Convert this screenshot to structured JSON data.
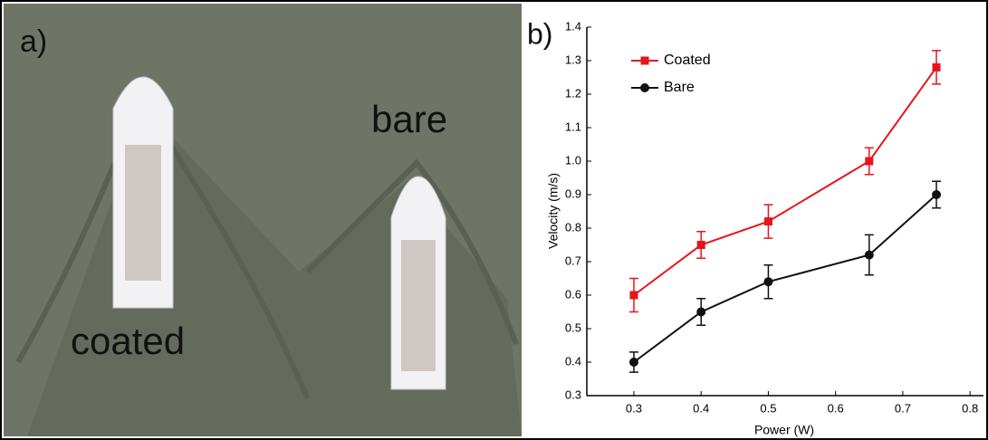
{
  "panel_a": {
    "label": "a)",
    "annotations": [
      "coated",
      "bare"
    ]
  },
  "chart_data": {
    "type": "line",
    "panel_label": "b)",
    "x_label": "Power (W)",
    "y_label": "Velocity (m/s)",
    "x": [
      0.3,
      0.4,
      0.5,
      0.65,
      0.75
    ],
    "series": [
      {
        "name": "Coated",
        "color": "#e8141b",
        "marker": "square",
        "values": [
          0.6,
          0.75,
          0.82,
          1.0,
          1.28
        ],
        "errors": [
          0.05,
          0.04,
          0.05,
          0.04,
          0.05
        ]
      },
      {
        "name": "Bare",
        "color": "#111111",
        "marker": "circle",
        "values": [
          0.4,
          0.55,
          0.64,
          0.72,
          0.9
        ],
        "errors": [
          0.03,
          0.04,
          0.05,
          0.06,
          0.04
        ]
      }
    ],
    "xlim": [
      0.23,
      0.82
    ],
    "xticks": [
      0.3,
      0.4,
      0.5,
      0.6,
      0.7,
      0.8
    ],
    "ylim": [
      0.3,
      1.4
    ],
    "yticks": [
      0.3,
      0.4,
      0.5,
      0.6,
      0.7,
      0.8,
      0.9,
      {
        "value": 1,
        "label": "1.0"
      },
      1.1,
      1.2,
      1.3,
      1.4
    ],
    "legend": "upper left",
    "grid": false
  }
}
